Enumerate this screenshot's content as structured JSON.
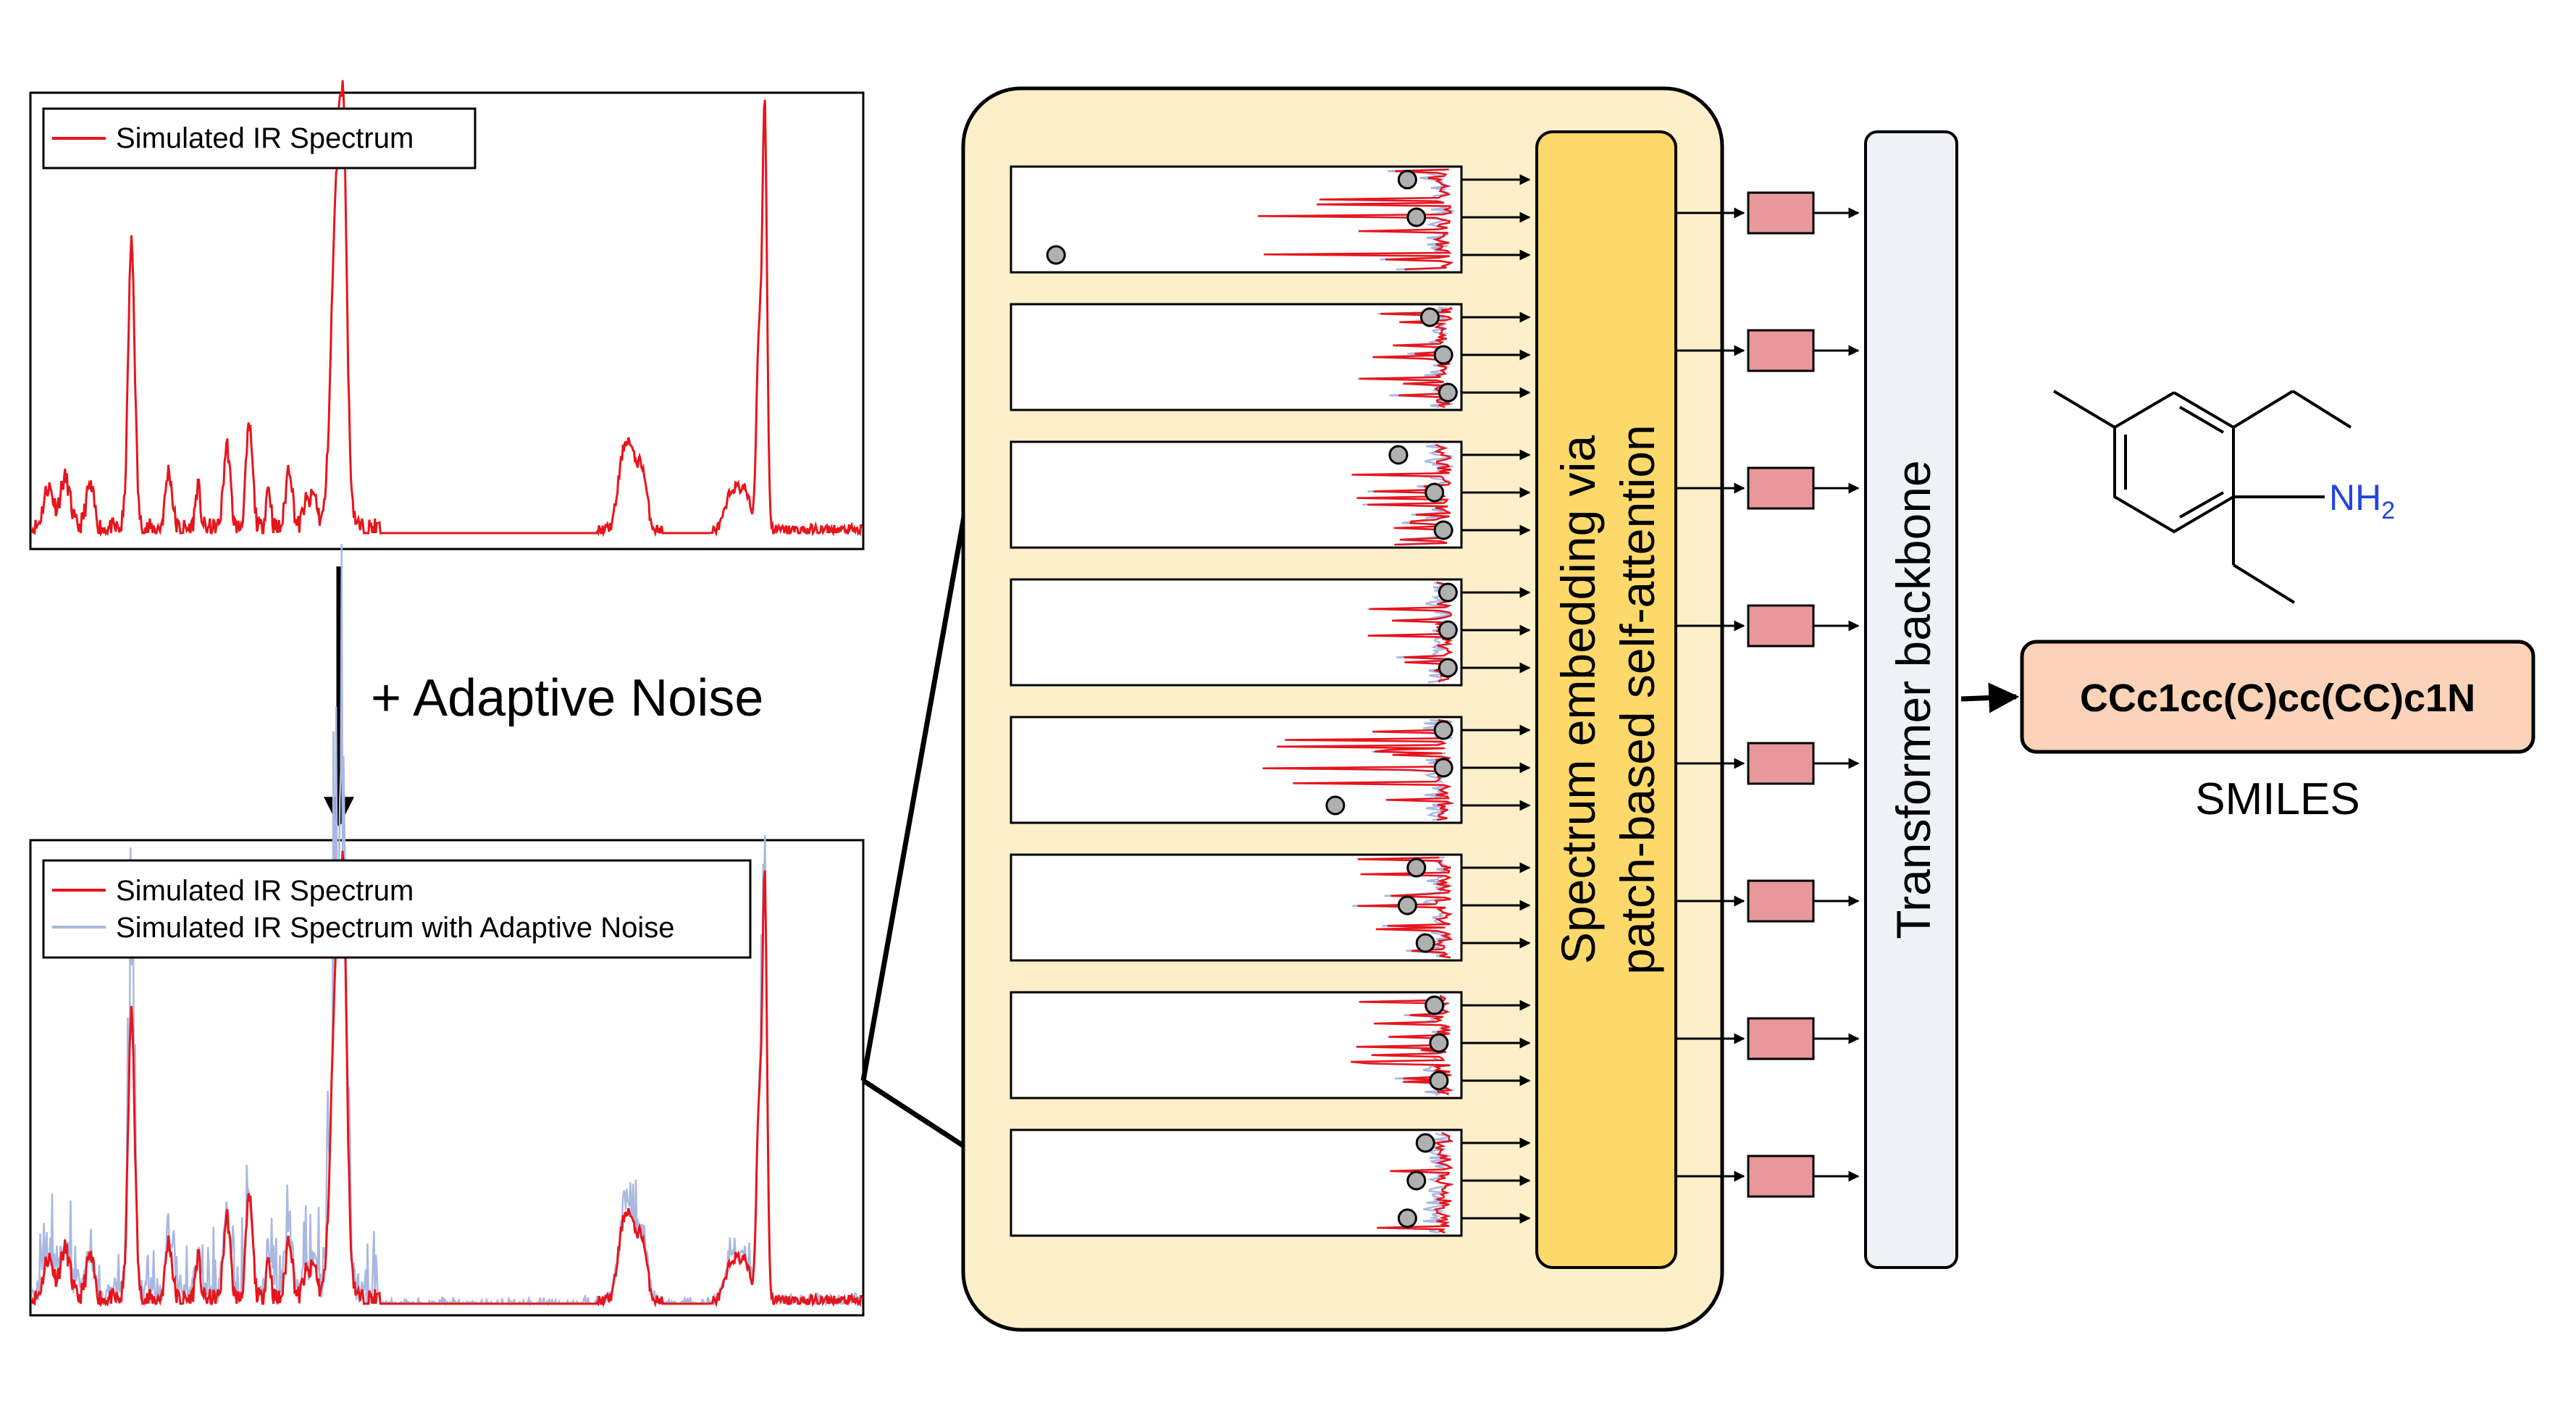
{
  "top_panel": {
    "legend": [
      {
        "label": "Simulated IR Spectrum",
        "color": "#e8141c"
      }
    ]
  },
  "noise_step": {
    "label": "+ Adaptive Noise"
  },
  "bottom_panel": {
    "legend": [
      {
        "label": "Simulated IR Spectrum",
        "color": "#e8141c"
      },
      {
        "label": "Simulated IR Spectrum with Adaptive Noise",
        "color": "#a9b8e0"
      }
    ]
  },
  "embedding_block": {
    "line1": "Spectrum embedding via",
    "line2": "patch-based self-attention",
    "fill": "#fcd96a"
  },
  "container": {
    "fill": "#fcefc9"
  },
  "backbone": {
    "label": "Transformer backbone",
    "fill": "#eef1f6"
  },
  "output": {
    "smiles": "CCc1cc(C)cc(CC)c1N",
    "caption": "SMILES",
    "fill": "#fad3b8"
  },
  "molecule": {
    "amine_label": "NH",
    "amine_subscript": "2",
    "amine_color": "#2244dd"
  },
  "colors": {
    "spectrum": "#e8141c",
    "noise": "#a9b8e0",
    "token": "#e8979b",
    "circle": "#b0b0b0"
  },
  "patches": {
    "count": 8,
    "circles_per_patch": 3
  }
}
